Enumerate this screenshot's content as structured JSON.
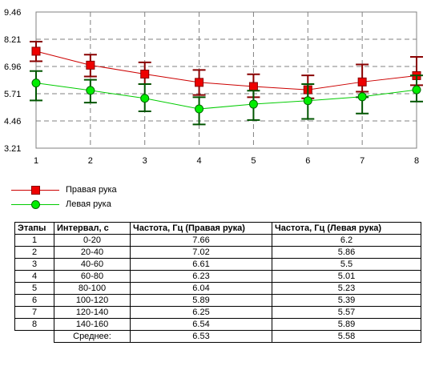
{
  "chart_data": {
    "type": "line",
    "x": [
      1,
      2,
      3,
      4,
      5,
      6,
      7,
      8
    ],
    "xticks": [
      "1",
      "2",
      "3",
      "4",
      "5",
      "6",
      "7",
      "8"
    ],
    "yticks": [
      "9.46",
      "8.21",
      "6.96",
      "5.71",
      "4.46",
      "3.21"
    ],
    "ylim": [
      3.21,
      9.46
    ],
    "grid": true,
    "error_bars": true,
    "series": [
      {
        "name": "Правая рука",
        "color": "#cc0000",
        "marker": "square",
        "values": [
          7.66,
          7.02,
          6.61,
          6.23,
          6.04,
          5.89,
          6.25,
          6.54
        ],
        "err_low": [
          7.2,
          6.5,
          6.15,
          5.65,
          5.55,
          5.5,
          5.8,
          6.1
        ],
        "err_high": [
          8.1,
          7.5,
          7.15,
          6.8,
          6.6,
          6.55,
          7.05,
          7.4
        ]
      },
      {
        "name": "Левая рука",
        "color": "#00cc00",
        "marker": "circle",
        "values": [
          6.2,
          5.86,
          5.5,
          5.01,
          5.23,
          5.39,
          5.57,
          5.89
        ],
        "err_low": [
          5.4,
          5.3,
          4.9,
          4.3,
          4.5,
          4.55,
          4.8,
          5.35
        ],
        "err_high": [
          6.75,
          6.35,
          6.15,
          5.55,
          5.85,
          6.15,
          5.55,
          6.55
        ]
      }
    ]
  },
  "legend": {
    "right": "Правая рука",
    "left": "Левая рука"
  },
  "table": {
    "headers": [
      "Этапы",
      "Интервал, с",
      "Частота, Гц (Правая рука)",
      "Частота, Гц (Левая рука)"
    ],
    "rows": [
      [
        "1",
        "0-20",
        "7.66",
        "6.2"
      ],
      [
        "2",
        "20-40",
        "7.02",
        "5.86"
      ],
      [
        "3",
        "40-60",
        "6.61",
        "5.5"
      ],
      [
        "4",
        "60-80",
        "6.23",
        "5.01"
      ],
      [
        "5",
        "80-100",
        "6.04",
        "5.23"
      ],
      [
        "6",
        "100-120",
        "5.89",
        "5.39"
      ],
      [
        "7",
        "120-140",
        "6.25",
        "5.57"
      ],
      [
        "8",
        "140-160",
        "6.54",
        "5.89"
      ]
    ],
    "footer": [
      "",
      "Среднее:",
      "6.53",
      "5.58"
    ]
  }
}
